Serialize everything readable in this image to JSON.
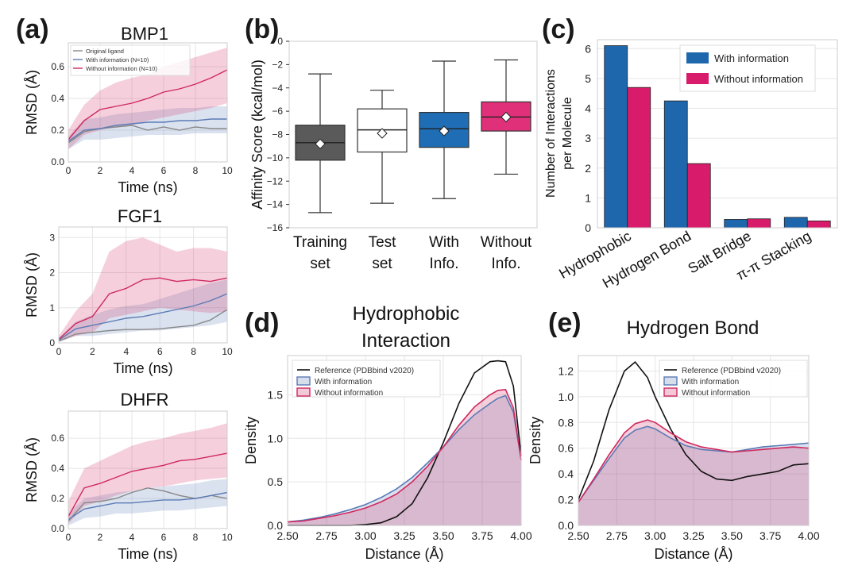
{
  "colors": {
    "original": "#888888",
    "with_info": "#5b7bb5",
    "without_info": "#d0285f",
    "with_bar": "#1f67ad",
    "without_bar": "#d81b6a",
    "training_box": "#5a5a5a",
    "test_box": "#ffffff",
    "with_box": "#1f6db5",
    "without_box": "#e1307a",
    "reference": "#111111",
    "grid": "#e6e6e6"
  },
  "panels": {
    "a": {
      "label": "(a)"
    },
    "b": {
      "label": "(b)"
    },
    "c": {
      "label": "(c)"
    },
    "d": {
      "label": "(d)"
    },
    "e": {
      "label": "(e)"
    }
  },
  "chart_data": [
    {
      "id": "a1",
      "type": "line",
      "title": "BMP1",
      "xlabel": "Time (ns)",
      "ylabel": "RMSD (Å)",
      "xlim": [
        0,
        10
      ],
      "ylim": [
        0,
        0.75
      ],
      "xticks": [
        "0",
        "2",
        "4",
        "6",
        "8",
        "10"
      ],
      "xtick_values": [
        0,
        2,
        4,
        6,
        8,
        10
      ],
      "yticks": [
        "0.0",
        "0.2",
        "0.4",
        "0.6"
      ],
      "ytick_values": [
        0,
        0.2,
        0.4,
        0.6
      ],
      "legend": [
        "Original ligand",
        "With information (N=10)",
        "Without information (N=10)"
      ],
      "x": [
        0,
        1,
        2,
        3,
        4,
        5,
        6,
        7,
        8,
        9,
        10
      ],
      "series": [
        {
          "name": "Original ligand",
          "values": [
            0.12,
            0.19,
            0.21,
            0.22,
            0.23,
            0.2,
            0.22,
            0.2,
            0.22,
            0.21,
            0.21
          ]
        },
        {
          "name": "With information (N=10)",
          "values": [
            0.13,
            0.2,
            0.21,
            0.23,
            0.24,
            0.25,
            0.25,
            0.26,
            0.26,
            0.27,
            0.27
          ],
          "band": [
            [
              0.08,
              0.16
            ],
            [
              0.14,
              0.27
            ],
            [
              0.14,
              0.28
            ],
            [
              0.15,
              0.3
            ],
            [
              0.16,
              0.31
            ],
            [
              0.17,
              0.32
            ],
            [
              0.17,
              0.33
            ],
            [
              0.17,
              0.34
            ],
            [
              0.18,
              0.34
            ],
            [
              0.18,
              0.35
            ],
            [
              0.18,
              0.35
            ]
          ]
        },
        {
          "name": "Without information (N=10)",
          "values": [
            0.14,
            0.26,
            0.33,
            0.35,
            0.37,
            0.4,
            0.44,
            0.46,
            0.49,
            0.53,
            0.58
          ],
          "band": [
            [
              0.08,
              0.2
            ],
            [
              0.17,
              0.36
            ],
            [
              0.2,
              0.45
            ],
            [
              0.22,
              0.5
            ],
            [
              0.23,
              0.53
            ],
            [
              0.26,
              0.55
            ],
            [
              0.28,
              0.6
            ],
            [
              0.3,
              0.63
            ],
            [
              0.32,
              0.66
            ],
            [
              0.34,
              0.69
            ],
            [
              0.37,
              0.72
            ]
          ]
        }
      ]
    },
    {
      "id": "a2",
      "type": "line",
      "title": "FGF1",
      "xlabel": "Time (ns)",
      "ylabel": "RMSD (Å)",
      "xlim": [
        0,
        10
      ],
      "ylim": [
        0,
        3.3
      ],
      "xticks": [
        "0",
        "2",
        "4",
        "6",
        "8",
        "10"
      ],
      "xtick_values": [
        0,
        2,
        4,
        6,
        8,
        10
      ],
      "yticks": [
        "0",
        "1",
        "2",
        "3"
      ],
      "ytick_values": [
        0,
        1,
        2,
        3
      ],
      "x": [
        0,
        1,
        2,
        3,
        4,
        5,
        6,
        7,
        8,
        9,
        10
      ],
      "series": [
        {
          "name": "Original ligand",
          "values": [
            0.05,
            0.25,
            0.3,
            0.35,
            0.38,
            0.38,
            0.4,
            0.45,
            0.5,
            0.65,
            0.95
          ]
        },
        {
          "name": "With information (N=10)",
          "values": [
            0.08,
            0.4,
            0.5,
            0.6,
            0.7,
            0.75,
            0.85,
            0.95,
            1.05,
            1.2,
            1.4
          ],
          "band": [
            [
              0.03,
              0.15
            ],
            [
              0.2,
              0.6
            ],
            [
              0.2,
              0.8
            ],
            [
              0.25,
              0.95
            ],
            [
              0.3,
              1.05
            ],
            [
              0.35,
              1.1
            ],
            [
              0.35,
              1.25
            ],
            [
              0.4,
              1.4
            ],
            [
              0.45,
              1.55
            ],
            [
              0.5,
              1.7
            ],
            [
              0.6,
              1.8
            ]
          ]
        },
        {
          "name": "Without information (N=10)",
          "values": [
            0.1,
            0.55,
            0.75,
            1.4,
            1.55,
            1.8,
            1.85,
            1.75,
            1.8,
            1.75,
            1.85
          ],
          "band": [
            [
              0.03,
              0.2
            ],
            [
              0.2,
              0.9
            ],
            [
              0.3,
              1.4
            ],
            [
              0.7,
              2.6
            ],
            [
              0.8,
              2.9
            ],
            [
              0.9,
              3.0
            ],
            [
              1.0,
              2.8
            ],
            [
              0.95,
              2.6
            ],
            [
              0.9,
              2.7
            ],
            [
              0.85,
              2.7
            ],
            [
              0.9,
              2.6
            ]
          ]
        }
      ]
    },
    {
      "id": "a3",
      "type": "line",
      "title": "DHFR",
      "xlabel": "Time (ns)",
      "ylabel": "RMSD (Å)",
      "xlim": [
        0,
        10
      ],
      "ylim": [
        0,
        0.78
      ],
      "xticks": [
        "0",
        "2",
        "4",
        "6",
        "8",
        "10"
      ],
      "xtick_values": [
        0,
        2,
        4,
        6,
        8,
        10
      ],
      "yticks": [
        "0.0",
        "0.2",
        "0.4",
        "0.6"
      ],
      "ytick_values": [
        0,
        0.2,
        0.4,
        0.6
      ],
      "x": [
        0,
        1,
        2,
        3,
        4,
        5,
        6,
        7,
        8,
        9,
        10
      ],
      "series": [
        {
          "name": "Original ligand",
          "values": [
            0.05,
            0.17,
            0.18,
            0.2,
            0.24,
            0.27,
            0.25,
            0.22,
            0.2,
            0.22,
            0.2
          ]
        },
        {
          "name": "With information (N=10)",
          "values": [
            0.06,
            0.13,
            0.15,
            0.17,
            0.17,
            0.18,
            0.19,
            0.19,
            0.2,
            0.22,
            0.24
          ],
          "band": [
            [
              0.02,
              0.1
            ],
            [
              0.07,
              0.2
            ],
            [
              0.08,
              0.22
            ],
            [
              0.1,
              0.24
            ],
            [
              0.1,
              0.25
            ],
            [
              0.11,
              0.27
            ],
            [
              0.12,
              0.28
            ],
            [
              0.12,
              0.29
            ],
            [
              0.13,
              0.3
            ],
            [
              0.14,
              0.32
            ],
            [
              0.15,
              0.33
            ]
          ]
        },
        {
          "name": "Without information (N=10)",
          "values": [
            0.08,
            0.27,
            0.3,
            0.34,
            0.38,
            0.4,
            0.42,
            0.45,
            0.46,
            0.48,
            0.5
          ],
          "band": [
            [
              0.03,
              0.18
            ],
            [
              0.15,
              0.4
            ],
            [
              0.18,
              0.45
            ],
            [
              0.22,
              0.5
            ],
            [
              0.25,
              0.55
            ],
            [
              0.27,
              0.58
            ],
            [
              0.28,
              0.6
            ],
            [
              0.3,
              0.63
            ],
            [
              0.32,
              0.65
            ],
            [
              0.33,
              0.67
            ],
            [
              0.34,
              0.7
            ]
          ]
        }
      ]
    },
    {
      "id": "b",
      "type": "box",
      "xlabel": "",
      "ylabel": "Affinity Score (kcal/mol)",
      "ylim": [
        -16,
        0
      ],
      "yticks": [
        "0",
        "−2",
        "−4",
        "−6",
        "−8",
        "−10",
        "−12",
        "−14",
        "−16"
      ],
      "ytick_values": [
        0,
        -2,
        -4,
        -6,
        -8,
        -10,
        -12,
        -14,
        -16
      ],
      "categories": [
        [
          "Training",
          "set"
        ],
        [
          "Test",
          "set"
        ],
        [
          "With",
          "Info."
        ],
        [
          "Without",
          "Info."
        ]
      ],
      "boxes": [
        {
          "whisker_low": -14.7,
          "q1": -10.2,
          "median": -8.7,
          "q3": -7.2,
          "whisker_high": -2.8,
          "mean": -8.8
        },
        {
          "whisker_low": -13.9,
          "q1": -9.5,
          "median": -7.6,
          "q3": -5.8,
          "whisker_high": -4.2,
          "mean": -7.9
        },
        {
          "whisker_low": -13.5,
          "q1": -9.1,
          "median": -7.5,
          "q3": -6.1,
          "whisker_high": -1.7,
          "mean": -7.7
        },
        {
          "whisker_low": -11.4,
          "q1": -7.7,
          "median": -6.5,
          "q3": -5.2,
          "whisker_high": -1.6,
          "mean": -6.5
        }
      ]
    },
    {
      "id": "c",
      "type": "bar",
      "xlabel": "",
      "ylabel": [
        "Number of Interactions",
        "per Molecule"
      ],
      "ylim": [
        0,
        6.3
      ],
      "yticks": [
        "0",
        "1",
        "2",
        "3",
        "4",
        "5",
        "6"
      ],
      "ytick_values": [
        0,
        1,
        2,
        3,
        4,
        5,
        6
      ],
      "categories": [
        "Hydrophobic",
        "Hydrogen Bond",
        "Salt Bridge",
        "π-π Stacking"
      ],
      "legend": [
        "With information",
        "Without information"
      ],
      "series": [
        {
          "name": "With information",
          "values": [
            6.1,
            4.25,
            0.28,
            0.35
          ]
        },
        {
          "name": "Without information",
          "values": [
            4.7,
            2.15,
            0.3,
            0.23
          ]
        }
      ]
    },
    {
      "id": "d",
      "type": "area",
      "title": [
        "Hydrophobic",
        "Interaction"
      ],
      "xlabel": "Distance (Å)",
      "ylabel": "Density",
      "xlim": [
        2.5,
        4.0
      ],
      "ylim": [
        0,
        1.95
      ],
      "xticks": [
        "2.50",
        "2.75",
        "3.00",
        "3.25",
        "3.50",
        "3.75",
        "4.00"
      ],
      "xtick_values": [
        2.5,
        2.75,
        3.0,
        3.25,
        3.5,
        3.75,
        4.0
      ],
      "yticks": [
        "0.0",
        "0.5",
        "1.0",
        "1.5"
      ],
      "ytick_values": [
        0,
        0.5,
        1.0,
        1.5
      ],
      "legend": [
        "Reference (PDBbind v2020)",
        "With information",
        "Without information"
      ],
      "x": [
        2.5,
        2.6,
        2.7,
        2.8,
        2.9,
        3.0,
        3.1,
        3.2,
        3.3,
        3.4,
        3.5,
        3.6,
        3.7,
        3.8,
        3.85,
        3.9,
        3.95,
        4.0
      ],
      "series": [
        {
          "name": "Reference (PDBbind v2020)",
          "values": [
            0.0,
            0.0,
            0.0,
            0.0,
            0.0,
            0.01,
            0.03,
            0.1,
            0.25,
            0.55,
            0.95,
            1.4,
            1.75,
            1.88,
            1.89,
            1.88,
            1.6,
            0.8
          ]
        },
        {
          "name": "With information",
          "values": [
            0.04,
            0.06,
            0.09,
            0.13,
            0.18,
            0.24,
            0.32,
            0.42,
            0.55,
            0.72,
            0.9,
            1.1,
            1.27,
            1.4,
            1.46,
            1.49,
            1.3,
            0.75
          ]
        },
        {
          "name": "Without information",
          "values": [
            0.04,
            0.05,
            0.08,
            0.11,
            0.15,
            0.2,
            0.27,
            0.36,
            0.5,
            0.68,
            0.9,
            1.15,
            1.36,
            1.5,
            1.55,
            1.56,
            1.35,
            0.75
          ]
        }
      ]
    },
    {
      "id": "e",
      "type": "area",
      "title": "Hydrogen Bond",
      "xlabel": "Distance (Å)",
      "ylabel": "Density",
      "xlim": [
        2.5,
        4.0
      ],
      "ylim": [
        0,
        1.32
      ],
      "xticks": [
        "2.50",
        "2.75",
        "3.00",
        "3.25",
        "3.50",
        "3.75",
        "4.00"
      ],
      "xtick_values": [
        2.5,
        2.75,
        3.0,
        3.25,
        3.5,
        3.75,
        4.0
      ],
      "yticks": [
        "0.0",
        "0.2",
        "0.4",
        "0.6",
        "0.8",
        "1.0",
        "1.2"
      ],
      "ytick_values": [
        0,
        0.2,
        0.4,
        0.6,
        0.8,
        1.0,
        1.2
      ],
      "legend": [
        "Reference (PDBbind v2020)",
        "With information",
        "Without information"
      ],
      "x": [
        2.5,
        2.6,
        2.7,
        2.8,
        2.87,
        2.95,
        3.0,
        3.1,
        3.2,
        3.3,
        3.4,
        3.5,
        3.6,
        3.7,
        3.8,
        3.9,
        4.0
      ],
      "series": [
        {
          "name": "Reference (PDBbind v2020)",
          "values": [
            0.2,
            0.5,
            0.9,
            1.2,
            1.27,
            1.15,
            1.0,
            0.75,
            0.55,
            0.42,
            0.36,
            0.35,
            0.38,
            0.4,
            0.42,
            0.47,
            0.48
          ]
        },
        {
          "name": "With information",
          "values": [
            0.18,
            0.35,
            0.52,
            0.68,
            0.74,
            0.77,
            0.75,
            0.68,
            0.62,
            0.59,
            0.58,
            0.57,
            0.59,
            0.61,
            0.62,
            0.63,
            0.64
          ]
        },
        {
          "name": "Without information",
          "values": [
            0.18,
            0.36,
            0.55,
            0.72,
            0.79,
            0.82,
            0.8,
            0.72,
            0.65,
            0.61,
            0.59,
            0.57,
            0.58,
            0.59,
            0.6,
            0.61,
            0.6
          ]
        }
      ]
    }
  ]
}
